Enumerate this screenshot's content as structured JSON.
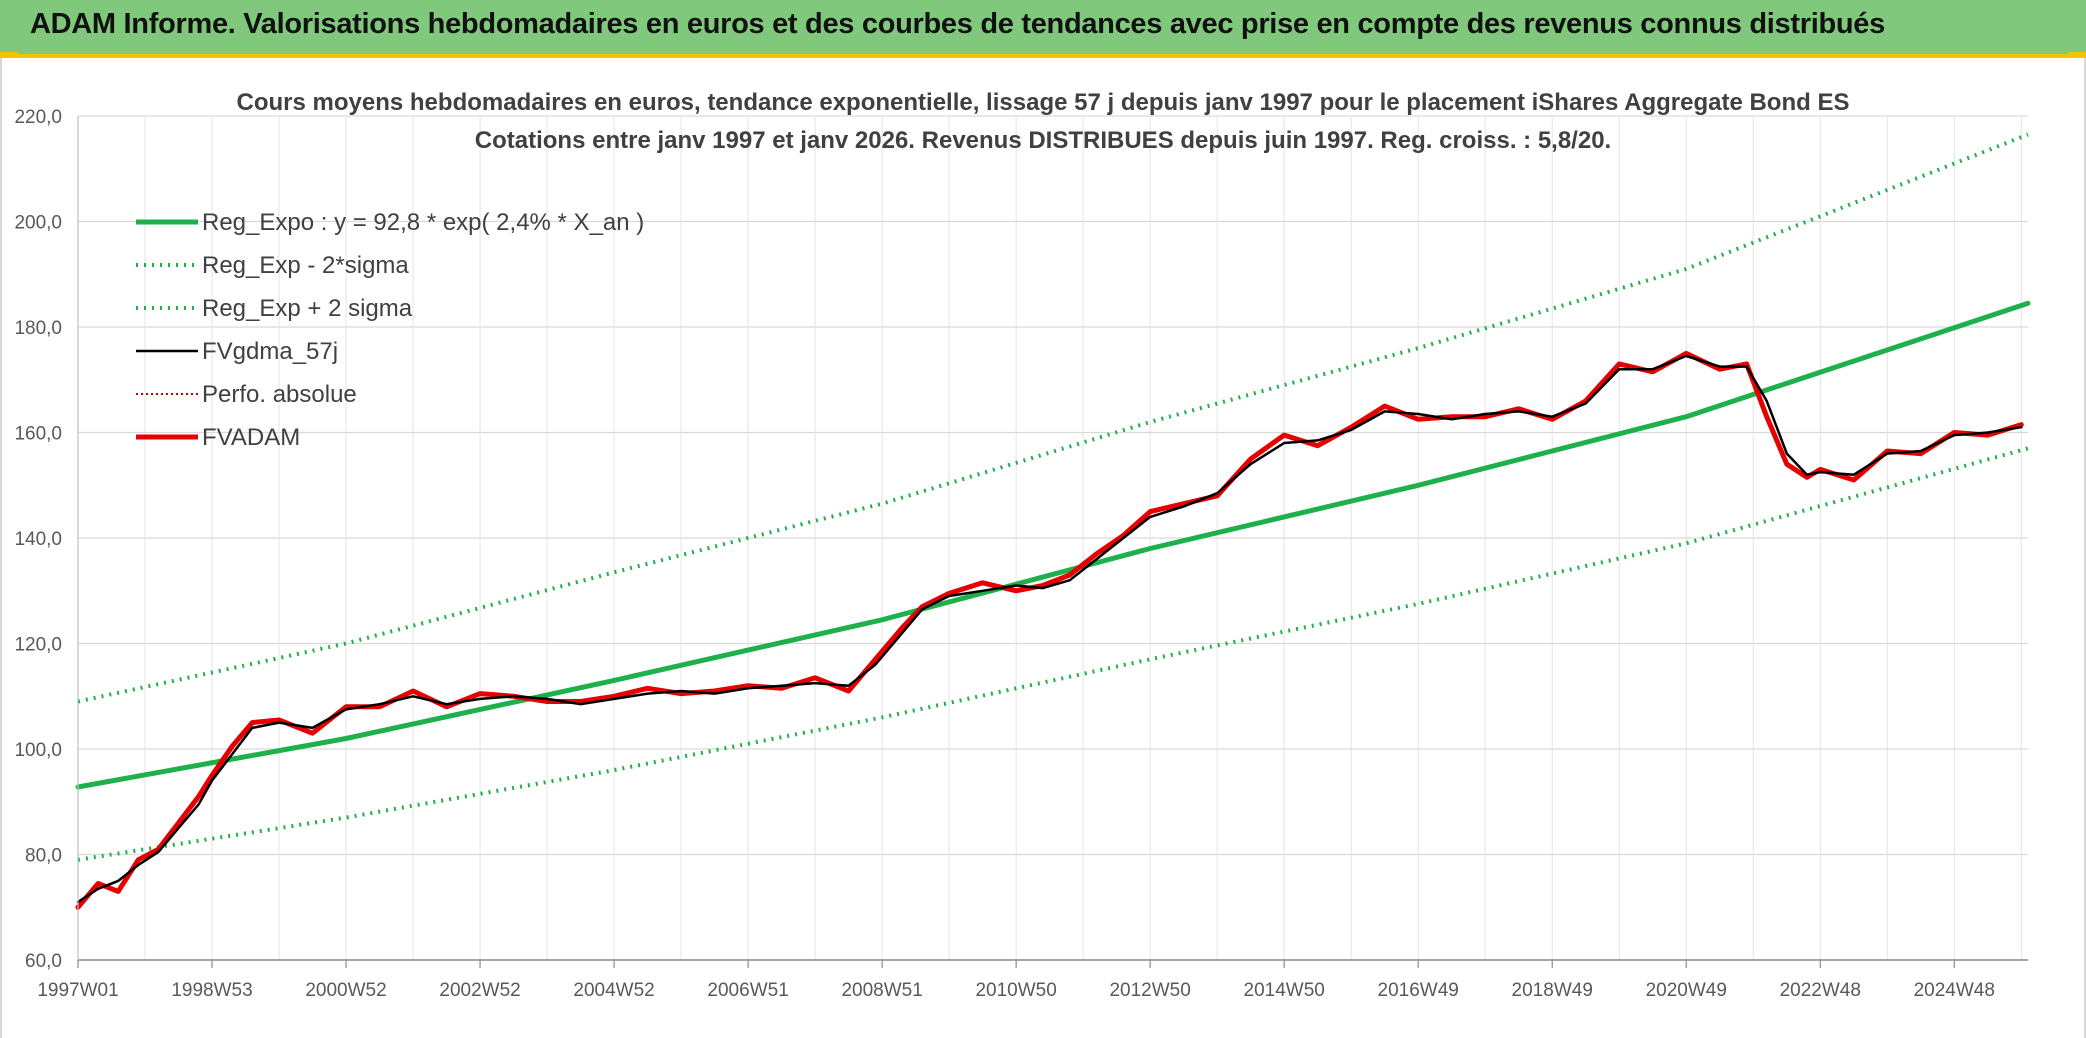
{
  "banner": {
    "title": "ADAM Informe. Valorisations hebdomadaires en euros et des courbes de tendances avec prise en compte des revenus connus distribués"
  },
  "colors": {
    "banner_bg": "#80c97c",
    "trend": "#1db04b",
    "price": "#e60000",
    "smooth": "#000000",
    "grid": "#d9d9d9"
  },
  "chart_data": {
    "type": "line",
    "title": "Cours moyens hebdomadaires en euros, tendance exponentielle, lissage 57 j depuis janv 1997 pour le placement iShares Aggregate Bond ES",
    "subtitle": "Cotations entre janv 1997 et janv 2026. Revenus DISTRIBUES depuis juin 1997. Reg. croiss. : 5,8/20.",
    "xlabel": "",
    "ylabel": "",
    "ylim": [
      60,
      220
    ],
    "xlim": [
      1997.0,
      2026.1
    ],
    "grid": true,
    "legend_position": "top-left",
    "y_ticks": [
      "60,0",
      "80,0",
      "100,0",
      "120,0",
      "140,0",
      "160,0",
      "180,0",
      "200,0",
      "220,0"
    ],
    "x_ticks": [
      {
        "label": "1997W01",
        "x": 1997.0
      },
      {
        "label": "1998W53",
        "x": 1999.0
      },
      {
        "label": "2000W52",
        "x": 2001.0
      },
      {
        "label": "2002W52",
        "x": 2003.0
      },
      {
        "label": "2004W52",
        "x": 2005.0
      },
      {
        "label": "2006W51",
        "x": 2007.0
      },
      {
        "label": "2008W51",
        "x": 2009.0
      },
      {
        "label": "2010W50",
        "x": 2011.0
      },
      {
        "label": "2012W50",
        "x": 2013.0
      },
      {
        "label": "2014W50",
        "x": 2015.0
      },
      {
        "label": "2016W49",
        "x": 2017.0
      },
      {
        "label": "2018W49",
        "x": 2019.0
      },
      {
        "label": "2020W49",
        "x": 2021.0
      },
      {
        "label": "2022W48",
        "x": 2023.0
      },
      {
        "label": "2024W48",
        "x": 2025.0
      }
    ],
    "series": [
      {
        "name": "Reg_Expo : y = 92,8 * exp( 2,4% *  X_an )",
        "style": "thick",
        "color": "#1db04b",
        "x": [
          1997.0,
          2001.0,
          2005.0,
          2009.0,
          2013.0,
          2017.0,
          2021.0,
          2026.1
        ],
        "y": [
          92.8,
          102.0,
          113.0,
          124.5,
          138.0,
          150.0,
          163.0,
          184.5
        ]
      },
      {
        "name": "Reg_Exp - 2*sigma",
        "style": "dotted",
        "color": "#1db04b",
        "x": [
          1997.0,
          2001.0,
          2005.0,
          2009.0,
          2013.0,
          2017.0,
          2021.0,
          2026.1
        ],
        "y": [
          79.0,
          87.0,
          96.0,
          106.0,
          117.0,
          127.5,
          139.0,
          157.0
        ]
      },
      {
        "name": "Reg_Exp + 2 sigma",
        "style": "dotted",
        "color": "#1db04b",
        "x": [
          1997.0,
          2001.0,
          2005.0,
          2009.0,
          2013.0,
          2017.0,
          2021.0,
          2026.1
        ],
        "y": [
          109.0,
          120.0,
          133.5,
          146.5,
          162.0,
          176.0,
          191.0,
          216.5
        ]
      },
      {
        "name": "FVgdma_57j",
        "style": "solid",
        "color": "#000000",
        "x": [
          1997.0,
          1997.3,
          1997.6,
          1997.9,
          1998.2,
          1998.5,
          1998.8,
          1999.0,
          1999.3,
          1999.6,
          2000.0,
          2000.5,
          2001.0,
          2001.5,
          2002.0,
          2002.5,
          2003.0,
          2003.5,
          2004.0,
          2004.5,
          2005.0,
          2005.5,
          2006.0,
          2006.5,
          2007.0,
          2007.5,
          2008.0,
          2008.5,
          2008.9,
          2009.3,
          2009.6,
          2010.0,
          2010.5,
          2011.0,
          2011.4,
          2011.8,
          2012.2,
          2012.6,
          2013.0,
          2013.5,
          2014.0,
          2014.5,
          2015.0,
          2015.5,
          2016.0,
          2016.5,
          2017.0,
          2017.5,
          2018.0,
          2018.5,
          2019.0,
          2019.5,
          2020.0,
          2020.5,
          2021.0,
          2021.5,
          2021.9,
          2022.2,
          2022.5,
          2022.8,
          2023.0,
          2023.5,
          2024.0,
          2024.5,
          2025.0,
          2025.5,
          2026.0
        ],
        "y": [
          71.0,
          73.5,
          75.0,
          78.0,
          80.5,
          85.0,
          89.5,
          94.0,
          99.0,
          104.0,
          105.0,
          104.0,
          107.5,
          108.5,
          110.0,
          108.5,
          109.5,
          110.0,
          109.5,
          108.5,
          109.5,
          110.5,
          111.0,
          110.5,
          111.5,
          112.0,
          112.5,
          112.0,
          116.0,
          122.0,
          126.5,
          129.0,
          130.0,
          131.0,
          130.5,
          132.0,
          136.0,
          140.0,
          144.0,
          146.0,
          148.5,
          154.0,
          158.0,
          158.5,
          160.5,
          164.0,
          163.5,
          162.5,
          163.5,
          164.0,
          163.0,
          165.5,
          172.0,
          172.0,
          174.5,
          172.5,
          172.5,
          166.0,
          156.0,
          152.0,
          152.5,
          152.0,
          156.0,
          156.5,
          159.5,
          160.0,
          161.0
        ]
      },
      {
        "name": "Perfo. absolue",
        "style": "dotted-thin",
        "color": "#c00000",
        "x": [
          1997.0,
          1997.3,
          1997.6,
          1997.9,
          1998.2,
          1998.5,
          1998.8,
          1999.0,
          1999.3,
          1999.6,
          2000.0,
          2000.5,
          2001.0,
          2001.5,
          2002.0,
          2002.5,
          2003.0,
          2003.5,
          2004.0,
          2004.5,
          2005.0,
          2005.5,
          2006.0,
          2006.5,
          2007.0,
          2007.5,
          2008.0,
          2008.5,
          2008.9,
          2009.3,
          2009.6,
          2010.0,
          2010.5,
          2011.0,
          2011.4,
          2011.8,
          2012.2,
          2012.6,
          2013.0,
          2013.5,
          2014.0,
          2014.5,
          2015.0,
          2015.5,
          2016.0,
          2016.5,
          2017.0,
          2017.5,
          2018.0,
          2018.5,
          2019.0,
          2019.5,
          2020.0,
          2020.5,
          2021.0,
          2021.5,
          2021.9,
          2022.2,
          2022.5,
          2022.8,
          2023.0,
          2023.5,
          2024.0,
          2024.5,
          2025.0,
          2025.5,
          2026.0
        ],
        "y": [
          71.0,
          73.5,
          75.0,
          78.0,
          80.5,
          85.0,
          89.5,
          94.0,
          99.0,
          104.0,
          105.0,
          104.0,
          107.5,
          108.5,
          110.0,
          108.5,
          109.5,
          110.0,
          109.5,
          108.5,
          109.5,
          110.5,
          111.0,
          110.5,
          111.5,
          112.0,
          112.5,
          112.0,
          116.0,
          122.0,
          126.5,
          129.0,
          130.0,
          131.0,
          130.5,
          132.0,
          136.0,
          140.0,
          144.0,
          146.0,
          148.5,
          154.0,
          158.0,
          158.5,
          160.5,
          164.0,
          163.5,
          162.5,
          163.5,
          164.0,
          163.0,
          165.5,
          172.0,
          172.0,
          174.5,
          172.5,
          172.5,
          166.0,
          156.0,
          152.0,
          152.5,
          152.0,
          156.0,
          156.5,
          159.5,
          160.0,
          161.0
        ]
      },
      {
        "name": "FVADAM",
        "style": "thick",
        "color": "#e60000",
        "x": [
          1997.0,
          1997.3,
          1997.6,
          1997.9,
          1998.2,
          1998.5,
          1998.8,
          1999.0,
          1999.3,
          1999.6,
          2000.0,
          2000.5,
          2001.0,
          2001.5,
          2002.0,
          2002.5,
          2003.0,
          2003.5,
          2004.0,
          2004.5,
          2005.0,
          2005.5,
          2006.0,
          2006.5,
          2007.0,
          2007.5,
          2008.0,
          2008.5,
          2008.9,
          2009.3,
          2009.6,
          2010.0,
          2010.5,
          2011.0,
          2011.4,
          2011.8,
          2012.2,
          2012.6,
          2013.0,
          2013.5,
          2014.0,
          2014.5,
          2015.0,
          2015.5,
          2016.0,
          2016.5,
          2017.0,
          2017.5,
          2018.0,
          2018.5,
          2019.0,
          2019.5,
          2020.0,
          2020.5,
          2021.0,
          2021.5,
          2021.9,
          2022.2,
          2022.5,
          2022.8,
          2023.0,
          2023.5,
          2024.0,
          2024.5,
          2025.0,
          2025.5,
          2026.0
        ],
        "y": [
          70.0,
          74.5,
          73.0,
          79.0,
          81.0,
          86.0,
          91.0,
          95.0,
          100.5,
          105.0,
          105.5,
          103.0,
          108.0,
          108.0,
          111.0,
          108.0,
          110.5,
          110.0,
          109.0,
          109.0,
          110.0,
          111.5,
          110.5,
          111.0,
          112.0,
          111.5,
          113.5,
          111.0,
          117.0,
          123.0,
          127.0,
          129.5,
          131.5,
          130.0,
          131.0,
          133.0,
          137.0,
          140.5,
          145.0,
          146.5,
          148.0,
          155.0,
          159.5,
          157.5,
          161.0,
          165.0,
          162.5,
          163.0,
          163.0,
          164.5,
          162.5,
          166.0,
          173.0,
          171.5,
          175.0,
          172.0,
          173.0,
          163.0,
          154.0,
          151.5,
          153.0,
          151.0,
          156.5,
          156.0,
          160.0,
          159.5,
          161.5
        ]
      }
    ]
  }
}
